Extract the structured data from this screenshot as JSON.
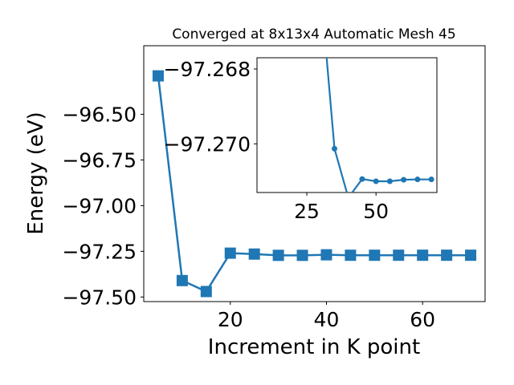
{
  "chart_data": [
    {
      "type": "line",
      "title": "Converged at 8x13x4 Automatic Mesh 45",
      "xlabel": "Increment in K point",
      "ylabel": "Energy (eV)",
      "xlim": [
        2,
        73
      ],
      "ylim": [
        -97.525,
        -96.125
      ],
      "xticks": [
        "20",
        "40",
        "60"
      ],
      "xtick_values": [
        20,
        40,
        60
      ],
      "yticks": [
        "−97.50",
        "−97.25",
        "−97.00",
        "−96.75",
        "−96.50"
      ],
      "ytick_values": [
        -97.5,
        -97.25,
        -97.0,
        -96.75,
        -96.5
      ],
      "marker": "square",
      "series": [
        {
          "x": [
            5,
            10,
            15,
            20,
            25,
            30,
            35,
            40,
            45,
            50,
            55,
            60,
            65,
            70
          ],
          "y": [
            -96.29,
            -97.41,
            -97.47,
            -97.26,
            -97.265,
            -97.272,
            -97.272,
            -97.269,
            -97.2715,
            -97.2715,
            -97.2714,
            -97.2713,
            -97.2713,
            -97.2713
          ],
          "color": "#1f77b4"
        }
      ],
      "grid": false
    },
    {
      "type": "line",
      "title": "",
      "inset": true,
      "xlim": [
        7,
        72
      ],
      "ylim": [
        -97.2713,
        -97.2677
      ],
      "xticks": [
        "25",
        "50"
      ],
      "xtick_values": [
        25,
        50
      ],
      "yticks": [
        "−97.270",
        "−97.268"
      ],
      "ytick_values": [
        -97.27,
        -97.268
      ],
      "marker": "circle",
      "series": [
        {
          "x": [
            30,
            35,
            40,
            45,
            50,
            55,
            60,
            65,
            70
          ],
          "y": [
            -97.26585,
            -97.27013,
            -97.27144,
            -97.27094,
            -97.271,
            -97.271,
            -97.27096,
            -97.27095,
            -97.27095
          ],
          "color": "#1f77b4"
        }
      ],
      "grid": false
    }
  ]
}
